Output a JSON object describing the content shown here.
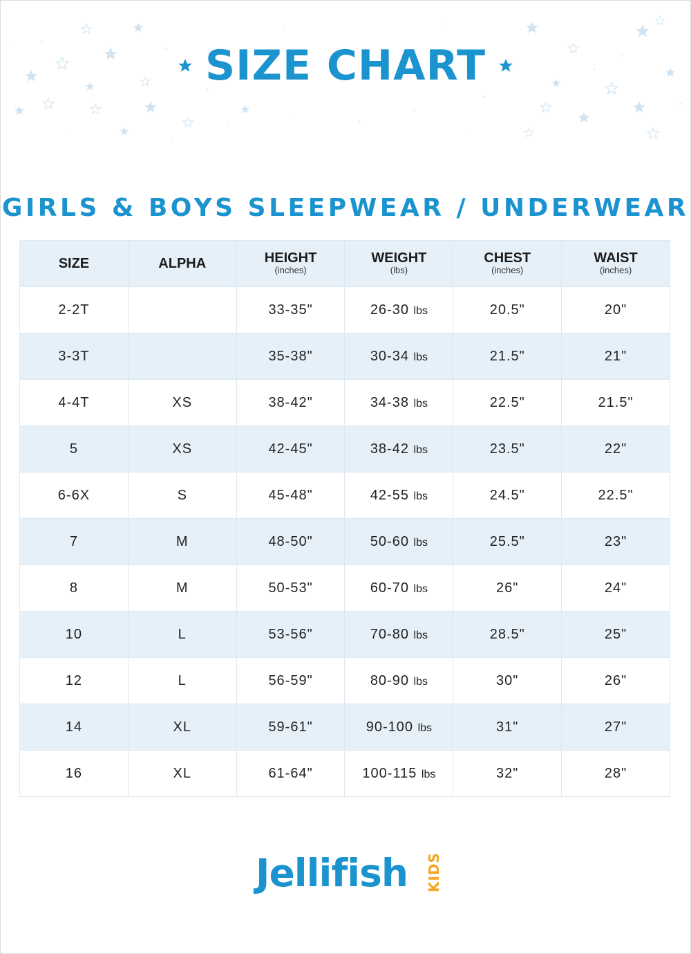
{
  "header": {
    "title": "SIZE CHART",
    "subtitle": "GIRLS & BOYS SLEEPWEAR / UNDERWEAR"
  },
  "table": {
    "columns": [
      {
        "label": "SIZE",
        "unit": ""
      },
      {
        "label": "ALPHA",
        "unit": ""
      },
      {
        "label": "HEIGHT",
        "unit": "(inches)"
      },
      {
        "label": "WEIGHT",
        "unit": "(lbs)"
      },
      {
        "label": "CHEST",
        "unit": "(inches)"
      },
      {
        "label": "WAIST",
        "unit": "(inches)"
      }
    ],
    "rows": [
      {
        "size": "2-2T",
        "alpha": "",
        "height": "33-35\"",
        "weight": "26-30",
        "weight_unit": "lbs",
        "chest": "20.5\"",
        "waist": "20\""
      },
      {
        "size": "3-3T",
        "alpha": "",
        "height": "35-38\"",
        "weight": "30-34",
        "weight_unit": "lbs",
        "chest": "21.5\"",
        "waist": "21\""
      },
      {
        "size": "4-4T",
        "alpha": "XS",
        "height": "38-42\"",
        "weight": "34-38",
        "weight_unit": "lbs",
        "chest": "22.5\"",
        "waist": "21.5\""
      },
      {
        "size": "5",
        "alpha": "XS",
        "height": "42-45\"",
        "weight": "38-42",
        "weight_unit": "lbs",
        "chest": "23.5\"",
        "waist": "22\""
      },
      {
        "size": "6-6X",
        "alpha": "S",
        "height": "45-48\"",
        "weight": "42-55",
        "weight_unit": "lbs",
        "chest": "24.5\"",
        "waist": "22.5\""
      },
      {
        "size": "7",
        "alpha": "M",
        "height": "48-50\"",
        "weight": "50-60",
        "weight_unit": "lbs",
        "chest": "25.5\"",
        "waist": "23\""
      },
      {
        "size": "8",
        "alpha": "M",
        "height": "50-53\"",
        "weight": "60-70",
        "weight_unit": "lbs",
        "chest": "26\"",
        "waist": "24\""
      },
      {
        "size": "10",
        "alpha": "L",
        "height": "53-56\"",
        "weight": "70-80",
        "weight_unit": "lbs",
        "chest": "28.5\"",
        "waist": "25\""
      },
      {
        "size": "12",
        "alpha": "L",
        "height": "56-59\"",
        "weight": "80-90",
        "weight_unit": "lbs",
        "chest": "30\"",
        "waist": "26\""
      },
      {
        "size": "14",
        "alpha": "XL",
        "height": "59-61\"",
        "weight": "90-100",
        "weight_unit": "lbs",
        "chest": "31\"",
        "waist": "27\""
      },
      {
        "size": "16",
        "alpha": "XL",
        "height": "61-64\"",
        "weight": "100-115",
        "weight_unit": "lbs",
        "chest": "32\"",
        "waist": "28\""
      }
    ]
  },
  "logo": {
    "name": "Jellifish",
    "suffix": "KIDS"
  },
  "colors": {
    "brand_blue": "#1a93cf",
    "row_stripe": "#e6f0f8",
    "logo_accent": "#f5a623",
    "star_blue": "#cfe3f2"
  },
  "icons": {
    "title_star": "star-icon",
    "background": "star-pattern"
  }
}
